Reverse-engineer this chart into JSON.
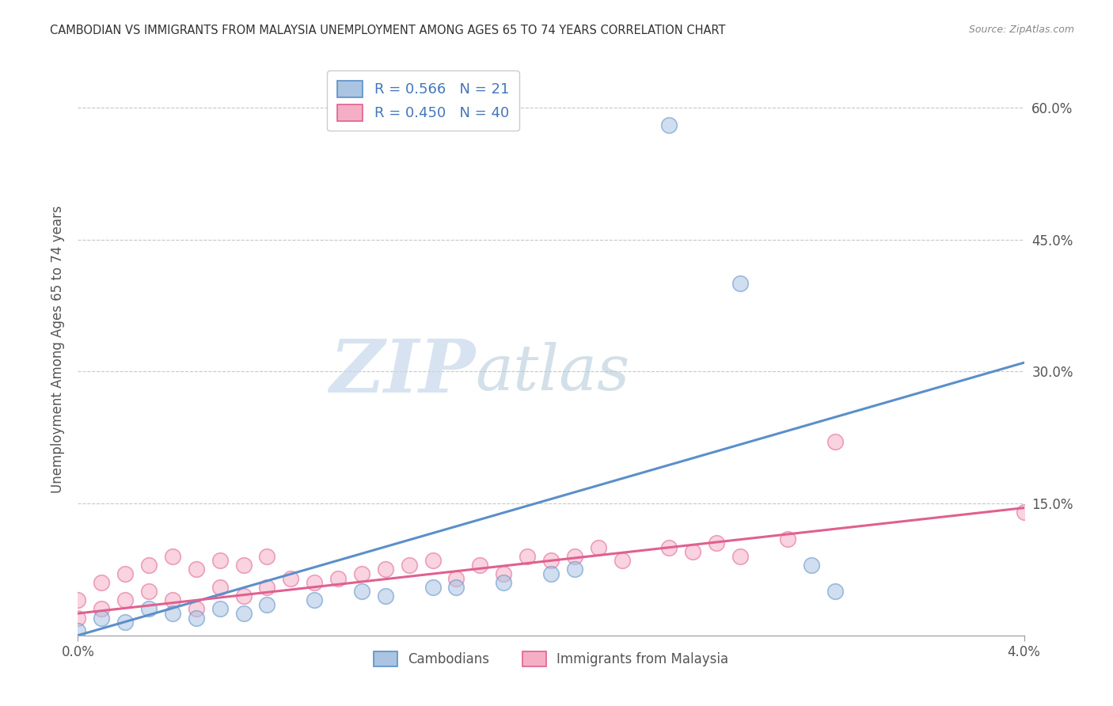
{
  "title": "CAMBODIAN VS IMMIGRANTS FROM MALAYSIA UNEMPLOYMENT AMONG AGES 65 TO 74 YEARS CORRELATION CHART",
  "source": "Source: ZipAtlas.com",
  "ylabel": "Unemployment Among Ages 65 to 74 years",
  "xlim": [
    0.0,
    0.04
  ],
  "ylim": [
    0.0,
    0.65
  ],
  "yticks": [
    0.15,
    0.3,
    0.45,
    0.6
  ],
  "ytick_labels": [
    "15.0%",
    "30.0%",
    "45.0%",
    "60.0%"
  ],
  "xtick_positions": [
    0.0,
    0.04
  ],
  "xtick_labels": [
    "0.0%",
    "4.0%"
  ],
  "legend_labels": [
    "Cambodians",
    "Immigrants from Malaysia"
  ],
  "legend_r_values": [
    "0.566",
    "0.450"
  ],
  "legend_n_values": [
    "21",
    "40"
  ],
  "cambodian_color": "#aac4e2",
  "malaysia_color": "#f5afc5",
  "line_cambodian": "#5b8fc9",
  "line_malaysia": "#e06090",
  "watermark_zip": "ZIP",
  "watermark_atlas": "atlas",
  "cambodian_scatter_x": [
    0.0,
    0.001,
    0.002,
    0.003,
    0.004,
    0.005,
    0.006,
    0.007,
    0.008,
    0.01,
    0.012,
    0.013,
    0.015,
    0.016,
    0.018,
    0.02,
    0.021,
    0.025,
    0.028,
    0.031,
    0.032
  ],
  "cambodian_scatter_y": [
    0.005,
    0.02,
    0.015,
    0.03,
    0.025,
    0.02,
    0.03,
    0.025,
    0.035,
    0.04,
    0.05,
    0.045,
    0.055,
    0.055,
    0.06,
    0.07,
    0.075,
    0.58,
    0.4,
    0.08,
    0.05
  ],
  "malaysia_scatter_x": [
    0.0,
    0.0,
    0.001,
    0.001,
    0.002,
    0.002,
    0.003,
    0.003,
    0.004,
    0.004,
    0.005,
    0.005,
    0.006,
    0.006,
    0.007,
    0.007,
    0.008,
    0.008,
    0.009,
    0.01,
    0.011,
    0.012,
    0.013,
    0.014,
    0.015,
    0.016,
    0.017,
    0.018,
    0.019,
    0.02,
    0.021,
    0.022,
    0.023,
    0.025,
    0.026,
    0.027,
    0.028,
    0.03,
    0.032,
    0.04
  ],
  "malaysia_scatter_y": [
    0.02,
    0.04,
    0.03,
    0.06,
    0.04,
    0.07,
    0.05,
    0.08,
    0.04,
    0.09,
    0.03,
    0.075,
    0.055,
    0.085,
    0.045,
    0.08,
    0.055,
    0.09,
    0.065,
    0.06,
    0.065,
    0.07,
    0.075,
    0.08,
    0.085,
    0.065,
    0.08,
    0.07,
    0.09,
    0.085,
    0.09,
    0.1,
    0.085,
    0.1,
    0.095,
    0.105,
    0.09,
    0.11,
    0.22,
    0.14
  ],
  "cambodian_line_x": [
    0.0,
    0.04
  ],
  "cambodian_line_y": [
    0.0,
    0.31
  ],
  "malaysia_line_x": [
    0.0,
    0.04
  ],
  "malaysia_line_y": [
    0.025,
    0.145
  ]
}
